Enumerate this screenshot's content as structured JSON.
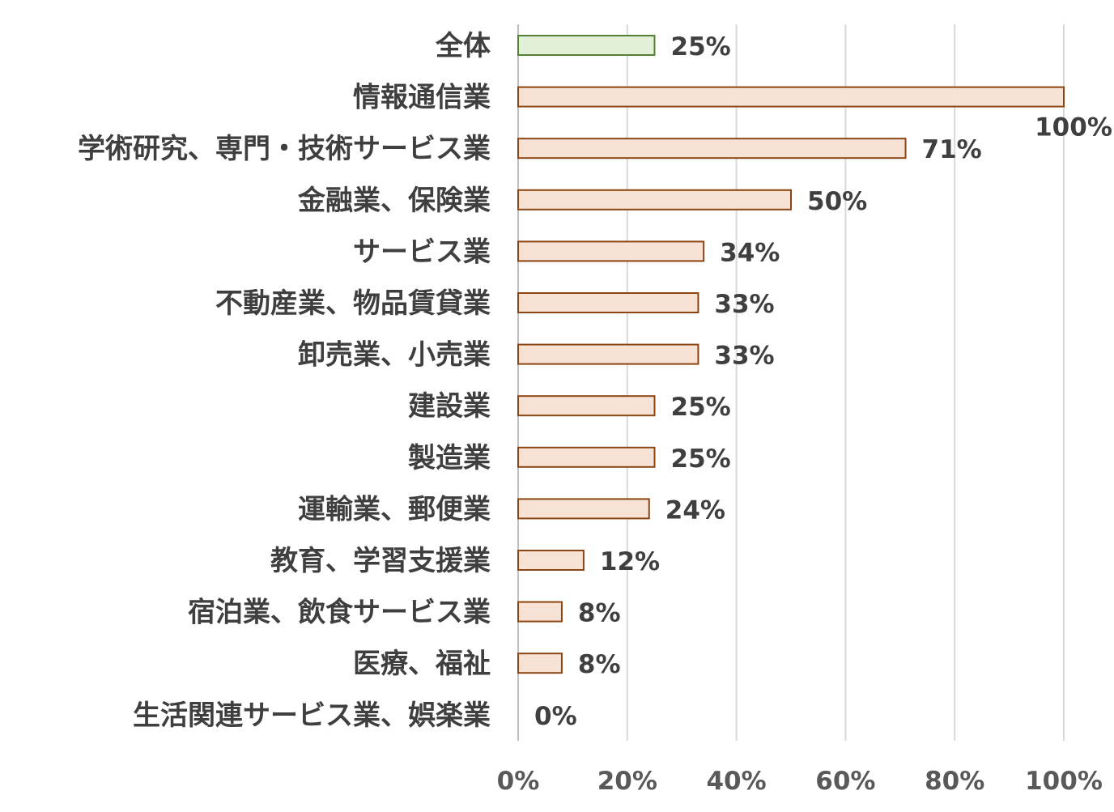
{
  "chart_data": {
    "type": "bar",
    "orientation": "horizontal",
    "categories": [
      "全体",
      "情報通信業",
      "学術研究、専門・技術サービス業",
      "金融業、保険業",
      "サービス業",
      "不動産業、物品賃貸業",
      "卸売業、小売業",
      "建設業",
      "製造業",
      "運輸業、郵便業",
      "教育、学習支援業",
      "宿泊業、飲食サービス業",
      "医療、福祉",
      "生活関連サービス業、娯楽業"
    ],
    "values": [
      25,
      100,
      71,
      50,
      34,
      33,
      33,
      25,
      25,
      24,
      12,
      8,
      8,
      0
    ],
    "data_labels": [
      "25%",
      "100%",
      "71%",
      "50%",
      "34%",
      "33%",
      "33%",
      "25%",
      "25%",
      "24%",
      "12%",
      "8%",
      "8%",
      "0%"
    ],
    "highlight_index": 0,
    "xlim": [
      0,
      100
    ],
    "x_ticks": [
      0,
      20,
      40,
      60,
      80,
      100
    ],
    "x_tick_labels": [
      "0%",
      "20%",
      "40%",
      "60%",
      "80%",
      "100%"
    ],
    "grid": true,
    "title": "",
    "xlabel": "",
    "ylabel": "",
    "colors": {
      "bar_fill": "#f7e2d6",
      "bar_stroke": "#8b4513",
      "highlight_fill": "#e2efd9",
      "highlight_stroke": "#548235",
      "grid": "#d9d9d9",
      "axis": "#bfbfbf"
    }
  }
}
